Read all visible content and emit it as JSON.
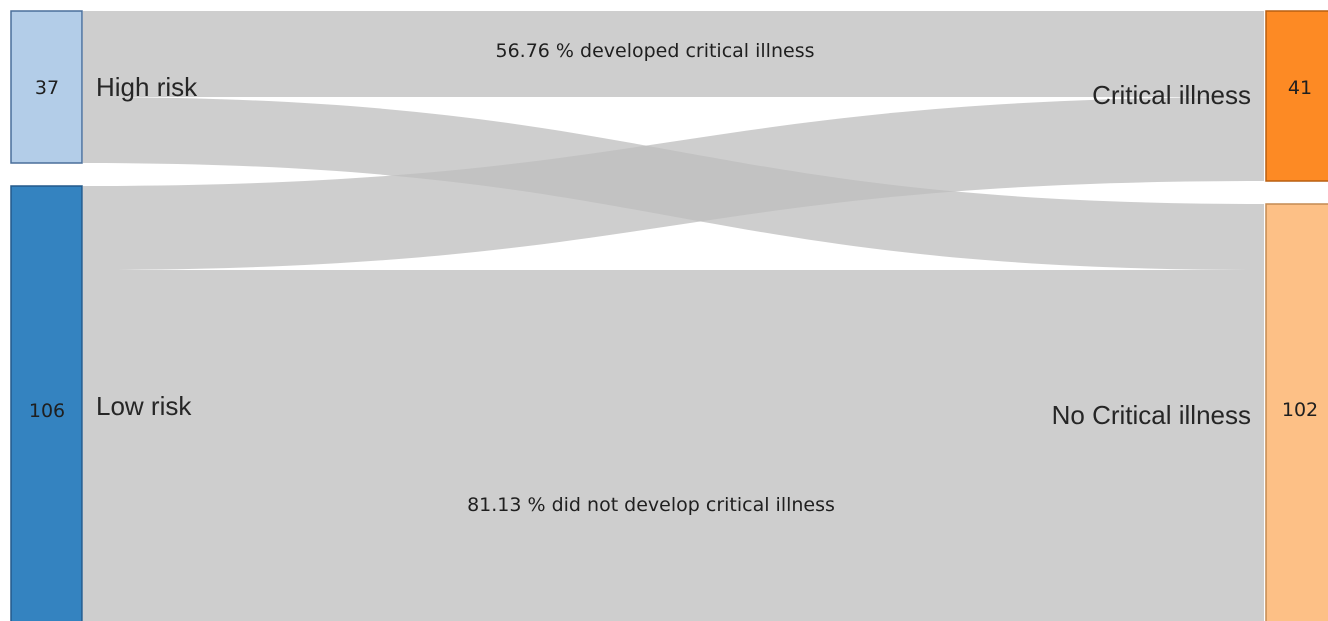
{
  "colors": {
    "flow": "#bdbdbd",
    "high_risk": "#b3cde8",
    "high_risk_border": "#4a6f9a",
    "low_risk": "#3483c0",
    "low_risk_border": "#23598a",
    "critical": "#fd8a24",
    "critical_border": "#b85f10",
    "no_critical": "#fdc086",
    "no_critical_border": "#c48a52"
  },
  "sources": [
    {
      "id": "high",
      "label": "High risk",
      "count": "37"
    },
    {
      "id": "low",
      "label": "Low risk",
      "count": "106"
    }
  ],
  "targets": [
    {
      "id": "crit",
      "label": "Critical illness",
      "count": "41"
    },
    {
      "id": "nocrit",
      "label": "No Critical illness",
      "count": "102"
    }
  ],
  "annotations": {
    "high_note": "56.76 % developed critical illness",
    "low_note": "81.13 % did not develop critical illness"
  }
}
